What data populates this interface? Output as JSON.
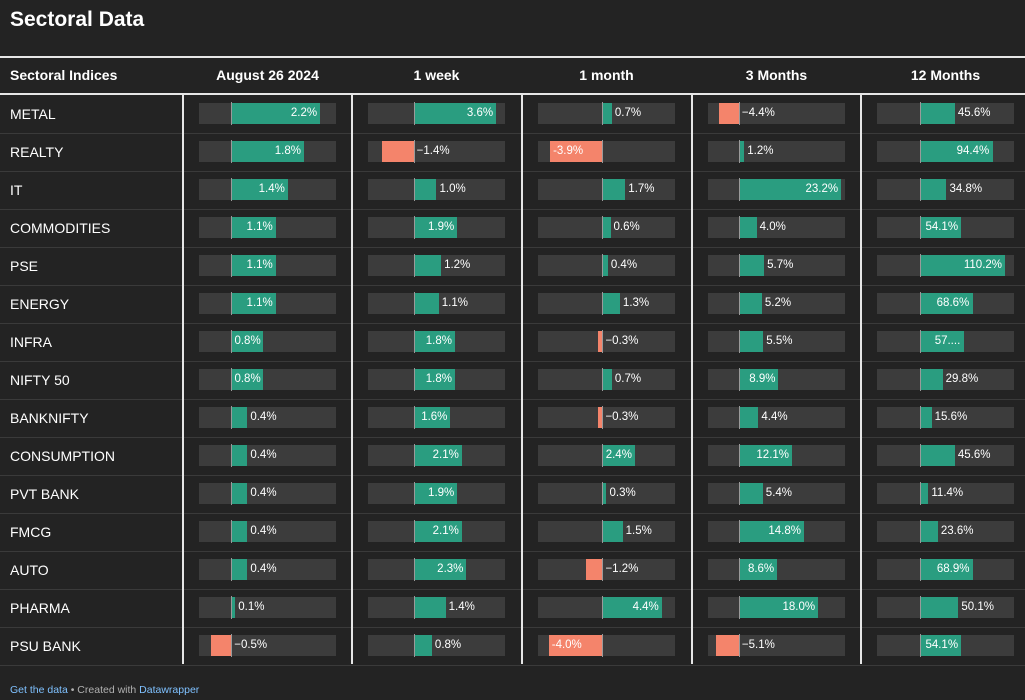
{
  "title": "Sectoral Data",
  "chart_data": {
    "type": "table",
    "title": "Sectoral Data",
    "name_header": "Sectoral Indices",
    "columns": [
      {
        "header": "August 26 2024",
        "domain": [
          -0.8,
          2.6
        ]
      },
      {
        "header": "1 week",
        "domain": [
          -2.0,
          4.0
        ]
      },
      {
        "header": "1 month",
        "domain": [
          -4.8,
          5.4
        ]
      },
      {
        "header": "3 Months",
        "domain": [
          -7.0,
          24.0
        ]
      },
      {
        "header": "12 Months",
        "domain": [
          -55.0,
          122.0
        ]
      }
    ],
    "rows": [
      {
        "name": "METAL",
        "values": [
          2.2,
          3.6,
          0.7,
          -4.4,
          45.6
        ],
        "labels": [
          "2.2%",
          "3.6%",
          "0.7%",
          "−4.4%",
          "45.6%"
        ]
      },
      {
        "name": "REALTY",
        "values": [
          1.8,
          -1.4,
          -3.9,
          1.2,
          94.4
        ],
        "labels": [
          "1.8%",
          "−1.4%",
          "-3.9%",
          "1.2%",
          "94.4%"
        ]
      },
      {
        "name": "IT",
        "values": [
          1.4,
          1.0,
          1.7,
          23.2,
          34.8
        ],
        "labels": [
          "1.4%",
          "1.0%",
          "1.7%",
          "23.2%",
          "34.8%"
        ]
      },
      {
        "name": "COMMODITIES",
        "values": [
          1.1,
          1.9,
          0.6,
          4.0,
          54.1
        ],
        "labels": [
          "1.1%",
          "1.9%",
          "0.6%",
          "4.0%",
          "54.1%"
        ]
      },
      {
        "name": "PSE",
        "values": [
          1.1,
          1.2,
          0.4,
          5.7,
          110.2
        ],
        "labels": [
          "1.1%",
          "1.2%",
          "0.4%",
          "5.7%",
          "110.2%"
        ]
      },
      {
        "name": "ENERGY",
        "values": [
          1.1,
          1.1,
          1.3,
          5.2,
          68.6
        ],
        "labels": [
          "1.1%",
          "1.1%",
          "1.3%",
          "5.2%",
          "68.6%"
        ]
      },
      {
        "name": "INFRA",
        "values": [
          0.8,
          1.8,
          -0.3,
          5.5,
          57.0
        ],
        "labels": [
          "0.8%",
          "1.8%",
          "−0.3%",
          "5.5%",
          "57...."
        ]
      },
      {
        "name": "NIFTY 50",
        "values": [
          0.8,
          1.8,
          0.7,
          8.9,
          29.8
        ],
        "labels": [
          "0.8%",
          "1.8%",
          "0.7%",
          "8.9%",
          "29.8%"
        ]
      },
      {
        "name": "BANKNIFTY",
        "values": [
          0.4,
          1.6,
          -0.3,
          4.4,
          15.6
        ],
        "labels": [
          "0.4%",
          "1.6%",
          "−0.3%",
          "4.4%",
          "15.6%"
        ]
      },
      {
        "name": "CONSUMPTION",
        "values": [
          0.4,
          2.1,
          2.4,
          12.1,
          45.6
        ],
        "labels": [
          "0.4%",
          "2.1%",
          "2.4%",
          "12.1%",
          "45.6%"
        ]
      },
      {
        "name": "PVT BANK",
        "values": [
          0.4,
          1.9,
          0.3,
          5.4,
          11.4
        ],
        "labels": [
          "0.4%",
          "1.9%",
          "0.3%",
          "5.4%",
          "11.4%"
        ]
      },
      {
        "name": "FMCG",
        "values": [
          0.4,
          2.1,
          1.5,
          14.8,
          23.6
        ],
        "labels": [
          "0.4%",
          "2.1%",
          "1.5%",
          "14.8%",
          "23.6%"
        ]
      },
      {
        "name": "AUTO",
        "values": [
          0.4,
          2.3,
          -1.2,
          8.6,
          68.9
        ],
        "labels": [
          "0.4%",
          "2.3%",
          "−1.2%",
          "8.6%",
          "68.9%"
        ]
      },
      {
        "name": "PHARMA",
        "values": [
          0.1,
          1.4,
          4.4,
          18.0,
          50.1
        ],
        "labels": [
          "0.1%",
          "1.4%",
          "4.4%",
          "18.0%",
          "50.1%"
        ]
      },
      {
        "name": "PSU BANK",
        "values": [
          -0.5,
          0.8,
          -4.0,
          -5.1,
          54.1
        ],
        "labels": [
          "−0.5%",
          "0.8%",
          "-4.0%",
          "−5.1%",
          "54.1%"
        ]
      }
    ]
  },
  "colors": {
    "background": "#232323",
    "positive": "#2a9d80",
    "negative": "#f4846b",
    "track": "#3c3c3c",
    "link": "#7fc1ff"
  },
  "footer": {
    "get_data": "Get the data",
    "separator": " • Created with ",
    "credit": "Datawrapper"
  }
}
